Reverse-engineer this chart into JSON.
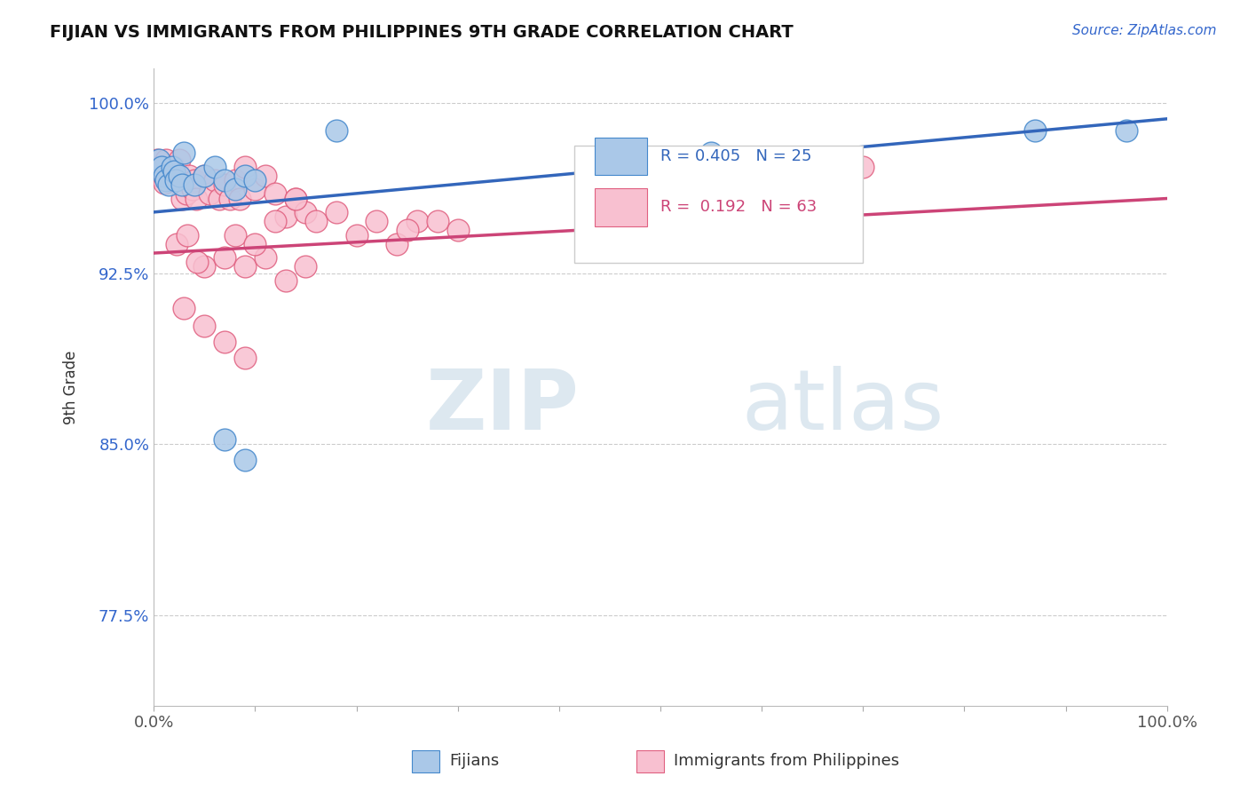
{
  "title": "FIJIAN VS IMMIGRANTS FROM PHILIPPINES 9TH GRADE CORRELATION CHART",
  "source_text": "Source: ZipAtlas.com",
  "xlabel_fijians": "Fijians",
  "xlabel_philippines": "Immigrants from Philippines",
  "ylabel": "9th Grade",
  "xlim": [
    0.0,
    1.0
  ],
  "ylim": [
    0.735,
    1.015
  ],
  "ytick_positions": [
    0.775,
    0.85,
    0.925,
    1.0
  ],
  "ytick_labels": [
    "77.5%",
    "85.0%",
    "92.5%",
    "100.0%"
  ],
  "legend_r_blue": "R = 0.405",
  "legend_n_blue": "N = 25",
  "legend_r_pink": "R =  0.192",
  "legend_n_pink": "N = 63",
  "blue_color": "#aac8e8",
  "blue_edge_color": "#4488cc",
  "pink_color": "#f8c0d0",
  "pink_edge_color": "#e06080",
  "blue_line_color": "#3366bb",
  "pink_line_color": "#cc4477",
  "background_color": "#ffffff",
  "watermark_color": "#dde8f0",
  "blue_line_y_start": 0.952,
  "blue_line_y_end": 0.993,
  "pink_line_y_start": 0.934,
  "pink_line_y_end": 0.958,
  "blue_scatter_x": [
    0.005,
    0.008,
    0.01,
    0.012,
    0.015,
    0.018,
    0.02,
    0.022,
    0.025,
    0.028,
    0.03,
    0.04,
    0.05,
    0.06,
    0.07,
    0.08,
    0.09,
    0.1,
    0.07,
    0.09,
    0.55,
    0.66,
    0.87,
    0.96,
    0.18
  ],
  "blue_scatter_y": [
    0.975,
    0.972,
    0.968,
    0.966,
    0.964,
    0.972,
    0.97,
    0.966,
    0.968,
    0.964,
    0.978,
    0.964,
    0.968,
    0.972,
    0.966,
    0.962,
    0.968,
    0.966,
    0.852,
    0.843,
    0.978,
    0.972,
    0.988,
    0.988,
    0.988
  ],
  "pink_scatter_x": [
    0.003,
    0.006,
    0.008,
    0.01,
    0.012,
    0.015,
    0.018,
    0.02,
    0.022,
    0.025,
    0.028,
    0.03,
    0.032,
    0.035,
    0.038,
    0.04,
    0.042,
    0.05,
    0.055,
    0.06,
    0.065,
    0.07,
    0.075,
    0.08,
    0.085,
    0.09,
    0.1,
    0.11,
    0.12,
    0.13,
    0.14,
    0.15,
    0.16,
    0.18,
    0.2,
    0.22,
    0.24,
    0.26,
    0.28,
    0.3,
    0.05,
    0.07,
    0.09,
    0.11,
    0.13,
    0.15,
    0.08,
    0.1,
    0.12,
    0.14,
    0.03,
    0.05,
    0.07,
    0.09,
    0.25,
    0.52,
    0.57,
    0.62,
    0.67,
    0.7,
    0.023,
    0.033,
    0.043
  ],
  "pink_scatter_y": [
    0.975,
    0.968,
    0.972,
    0.965,
    0.975,
    0.97,
    0.966,
    0.972,
    0.968,
    0.975,
    0.958,
    0.966,
    0.96,
    0.968,
    0.962,
    0.966,
    0.958,
    0.968,
    0.96,
    0.966,
    0.958,
    0.964,
    0.958,
    0.966,
    0.958,
    0.972,
    0.962,
    0.968,
    0.96,
    0.95,
    0.958,
    0.952,
    0.948,
    0.952,
    0.942,
    0.948,
    0.938,
    0.948,
    0.948,
    0.944,
    0.928,
    0.932,
    0.928,
    0.932,
    0.922,
    0.928,
    0.942,
    0.938,
    0.948,
    0.958,
    0.91,
    0.902,
    0.895,
    0.888,
    0.944,
    0.958,
    0.964,
    0.968,
    0.97,
    0.972,
    0.938,
    0.942,
    0.93
  ]
}
